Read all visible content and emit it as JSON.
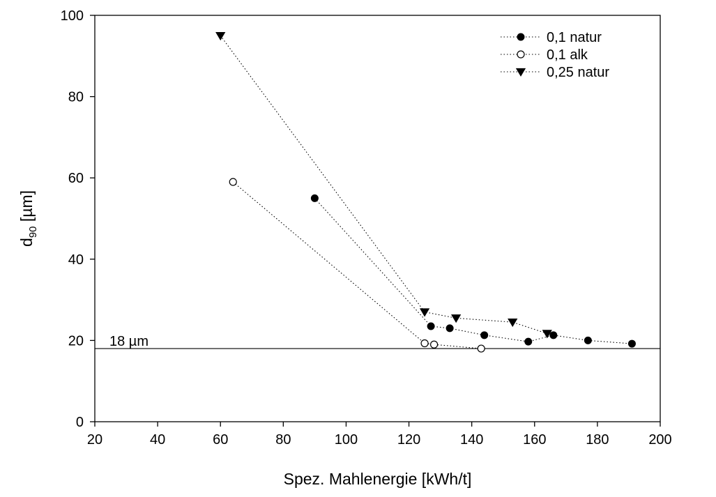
{
  "chart_data": {
    "type": "scatter",
    "xlabel": "Spez. Mahlenergie [kWh/t]",
    "ylabel": {
      "base": "d",
      "sub": "90",
      "suffix": " [µm]"
    },
    "xlim": [
      20,
      200
    ],
    "ylim": [
      0,
      100
    ],
    "x_ticks": [
      20,
      40,
      60,
      80,
      100,
      120,
      140,
      160,
      180,
      200
    ],
    "y_ticks": [
      0,
      20,
      40,
      60,
      80,
      100
    ],
    "grid": false,
    "legend_position": "top-right",
    "series": [
      {
        "name": "0,1 natur",
        "marker": "filled-circle",
        "line": "dotted",
        "x": [
          90,
          127,
          133,
          144,
          158,
          166,
          177,
          191
        ],
        "y": [
          55,
          23.5,
          23,
          21.3,
          19.7,
          21.3,
          20,
          19.2
        ]
      },
      {
        "name": "0,1 alk",
        "marker": "open-circle",
        "line": "dotted",
        "x": [
          64,
          125,
          128,
          143
        ],
        "y": [
          59,
          19.3,
          19,
          18
        ]
      },
      {
        "name": "0,25 natur",
        "marker": "filled-triangle-down",
        "line": "dotted",
        "x": [
          60,
          125,
          135,
          153,
          164
        ],
        "y": [
          95,
          27,
          25.5,
          24.5,
          21.7
        ]
      }
    ],
    "reference_line": {
      "y": 18,
      "label": "18 µm"
    }
  }
}
